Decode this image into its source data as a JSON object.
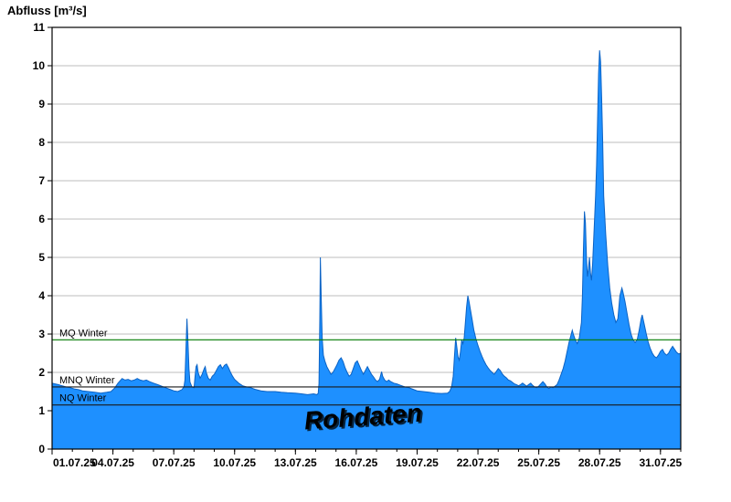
{
  "chart_data": {
    "type": "area",
    "title": "Abfluss [m³/s]",
    "xlabel": "",
    "ylabel": "Abfluss [m³/s]",
    "ylim": [
      0,
      11
    ],
    "xlim": [
      0,
      31
    ],
    "grid": "horizontal",
    "legend_position": "none",
    "watermark": "Rohdaten",
    "y_ticks": [
      0,
      1,
      2,
      3,
      4,
      5,
      6,
      7,
      8,
      9,
      10,
      11
    ],
    "x_ticks": [
      {
        "day": 0,
        "label": "01.07.25"
      },
      {
        "day": 3,
        "label": "04.07.25"
      },
      {
        "day": 6,
        "label": "07.07.25"
      },
      {
        "day": 9,
        "label": "10.07.25"
      },
      {
        "day": 12,
        "label": "13.07.25"
      },
      {
        "day": 15,
        "label": "16.07.25"
      },
      {
        "day": 18,
        "label": "19.07.25"
      },
      {
        "day": 21,
        "label": "22.07.25"
      },
      {
        "day": 24,
        "label": "25.07.25"
      },
      {
        "day": 27,
        "label": "28.07.25"
      },
      {
        "day": 30,
        "label": "31.07.25"
      }
    ],
    "reference_lines": [
      {
        "label": "MQ Winter",
        "value": 2.85,
        "color": "#007A00"
      },
      {
        "label": "MNQ Winter",
        "value": 1.62,
        "color": "#1A1A1A"
      },
      {
        "label": "NQ Winter",
        "value": 1.15,
        "color": "#1A1A1A"
      }
    ],
    "colors": {
      "area_fill": "#1E90FF",
      "area_stroke": "#0B62C4",
      "grid": "#BEBEBE",
      "axis": "#000000",
      "watermark_fill": "#FFFFFF",
      "watermark_shadow": "#666666"
    },
    "series": [
      {
        "name": "Rohdaten",
        "points": [
          [
            0,
            1.72
          ],
          [
            0.15,
            1.7
          ],
          [
            0.3,
            1.68
          ],
          [
            0.5,
            1.65
          ],
          [
            0.7,
            1.62
          ],
          [
            0.9,
            1.6
          ],
          [
            1.1,
            1.57
          ],
          [
            1.3,
            1.55
          ],
          [
            1.5,
            1.52
          ],
          [
            1.8,
            1.5
          ],
          [
            2.1,
            1.48
          ],
          [
            2.4,
            1.46
          ],
          [
            2.7,
            1.48
          ],
          [
            2.9,
            1.5
          ],
          [
            3.1,
            1.6
          ],
          [
            3.25,
            1.72
          ],
          [
            3.45,
            1.84
          ],
          [
            3.6,
            1.8
          ],
          [
            3.75,
            1.82
          ],
          [
            3.9,
            1.78
          ],
          [
            4.05,
            1.8
          ],
          [
            4.2,
            1.84
          ],
          [
            4.35,
            1.8
          ],
          [
            4.5,
            1.78
          ],
          [
            4.65,
            1.8
          ],
          [
            4.8,
            1.76
          ],
          [
            5,
            1.72
          ],
          [
            5.2,
            1.68
          ],
          [
            5.4,
            1.64
          ],
          [
            5.6,
            1.6
          ],
          [
            5.8,
            1.56
          ],
          [
            6,
            1.52
          ],
          [
            6.2,
            1.5
          ],
          [
            6.4,
            1.55
          ],
          [
            6.5,
            1.62
          ],
          [
            6.55,
            1.8
          ],
          [
            6.6,
            2.6
          ],
          [
            6.65,
            3.4
          ],
          [
            6.7,
            2.8
          ],
          [
            6.75,
            2.1
          ],
          [
            6.8,
            1.75
          ],
          [
            6.9,
            1.62
          ],
          [
            7,
            1.6
          ],
          [
            7.05,
            1.9
          ],
          [
            7.1,
            2.15
          ],
          [
            7.15,
            2.2
          ],
          [
            7.2,
            2
          ],
          [
            7.3,
            1.85
          ],
          [
            7.4,
            1.95
          ],
          [
            7.5,
            2.1
          ],
          [
            7.55,
            2.15
          ],
          [
            7.6,
            2
          ],
          [
            7.7,
            1.85
          ],
          [
            7.8,
            1.8
          ],
          [
            7.9,
            1.9
          ],
          [
            8,
            1.95
          ],
          [
            8.1,
            2.05
          ],
          [
            8.2,
            2.15
          ],
          [
            8.3,
            2.2
          ],
          [
            8.4,
            2.1
          ],
          [
            8.5,
            2.18
          ],
          [
            8.6,
            2.22
          ],
          [
            8.7,
            2.12
          ],
          [
            8.8,
            2
          ],
          [
            8.9,
            1.9
          ],
          [
            9,
            1.82
          ],
          [
            9.2,
            1.72
          ],
          [
            9.4,
            1.65
          ],
          [
            9.6,
            1.62
          ],
          [
            9.8,
            1.6
          ],
          [
            10,
            1.56
          ],
          [
            10.3,
            1.52
          ],
          [
            10.6,
            1.5
          ],
          [
            11,
            1.5
          ],
          [
            11.3,
            1.48
          ],
          [
            11.6,
            1.47
          ],
          [
            12,
            1.46
          ],
          [
            12.3,
            1.44
          ],
          [
            12.6,
            1.42
          ],
          [
            12.9,
            1.44
          ],
          [
            13.05,
            1.42
          ],
          [
            13.12,
            1.45
          ],
          [
            13.16,
            1.7
          ],
          [
            13.2,
            3.4
          ],
          [
            13.23,
            5
          ],
          [
            13.27,
            4
          ],
          [
            13.32,
            2.9
          ],
          [
            13.38,
            2.45
          ],
          [
            13.45,
            2.3
          ],
          [
            13.55,
            2.15
          ],
          [
            13.65,
            2.05
          ],
          [
            13.75,
            1.95
          ],
          [
            13.85,
            2
          ],
          [
            13.95,
            2.1
          ],
          [
            14.05,
            2.2
          ],
          [
            14.15,
            2.32
          ],
          [
            14.25,
            2.38
          ],
          [
            14.35,
            2.28
          ],
          [
            14.45,
            2.12
          ],
          [
            14.55,
            2
          ],
          [
            14.65,
            1.9
          ],
          [
            14.75,
            1.95
          ],
          [
            14.85,
            2.1
          ],
          [
            14.95,
            2.25
          ],
          [
            15.05,
            2.3
          ],
          [
            15.15,
            2.18
          ],
          [
            15.25,
            2.05
          ],
          [
            15.35,
            1.95
          ],
          [
            15.45,
            2.05
          ],
          [
            15.55,
            2.15
          ],
          [
            15.65,
            2.05
          ],
          [
            15.75,
            1.95
          ],
          [
            15.85,
            1.88
          ],
          [
            15.95,
            1.8
          ],
          [
            16.05,
            1.76
          ],
          [
            16.15,
            1.82
          ],
          [
            16.25,
            2.02
          ],
          [
            16.3,
            1.9
          ],
          [
            16.4,
            1.8
          ],
          [
            16.5,
            1.76
          ],
          [
            16.6,
            1.8
          ],
          [
            16.7,
            1.76
          ],
          [
            16.85,
            1.72
          ],
          [
            17,
            1.7
          ],
          [
            17.2,
            1.66
          ],
          [
            17.4,
            1.62
          ],
          [
            17.6,
            1.6
          ],
          [
            17.8,
            1.56
          ],
          [
            18,
            1.52
          ],
          [
            18.3,
            1.5
          ],
          [
            18.6,
            1.48
          ],
          [
            18.9,
            1.46
          ],
          [
            19.2,
            1.45
          ],
          [
            19.5,
            1.46
          ],
          [
            19.6,
            1.5
          ],
          [
            19.7,
            1.62
          ],
          [
            19.78,
            1.9
          ],
          [
            19.84,
            2.4
          ],
          [
            19.9,
            2.9
          ],
          [
            19.96,
            2.65
          ],
          [
            20.02,
            2.4
          ],
          [
            20.08,
            2.32
          ],
          [
            20.14,
            2.55
          ],
          [
            20.2,
            2.85
          ],
          [
            20.26,
            2.75
          ],
          [
            20.32,
            2.9
          ],
          [
            20.38,
            3.3
          ],
          [
            20.44,
            3.7
          ],
          [
            20.5,
            4
          ],
          [
            20.56,
            3.85
          ],
          [
            20.64,
            3.6
          ],
          [
            20.72,
            3.35
          ],
          [
            20.8,
            3.1
          ],
          [
            20.9,
            2.88
          ],
          [
            21,
            2.7
          ],
          [
            21.1,
            2.55
          ],
          [
            21.2,
            2.42
          ],
          [
            21.3,
            2.3
          ],
          [
            21.4,
            2.2
          ],
          [
            21.5,
            2.12
          ],
          [
            21.6,
            2.05
          ],
          [
            21.7,
            2
          ],
          [
            21.8,
            1.95
          ],
          [
            21.9,
            2.02
          ],
          [
            22,
            2.1
          ],
          [
            22.1,
            2.05
          ],
          [
            22.2,
            1.96
          ],
          [
            22.3,
            1.9
          ],
          [
            22.4,
            1.86
          ],
          [
            22.5,
            1.8
          ],
          [
            22.6,
            1.78
          ],
          [
            22.7,
            1.74
          ],
          [
            22.8,
            1.7
          ],
          [
            22.9,
            1.68
          ],
          [
            23,
            1.65
          ],
          [
            23.1,
            1.68
          ],
          [
            23.2,
            1.72
          ],
          [
            23.3,
            1.68
          ],
          [
            23.4,
            1.64
          ],
          [
            23.5,
            1.68
          ],
          [
            23.6,
            1.72
          ],
          [
            23.7,
            1.66
          ],
          [
            23.8,
            1.62
          ],
          [
            23.9,
            1.6
          ],
          [
            24,
            1.64
          ],
          [
            24.1,
            1.7
          ],
          [
            24.2,
            1.76
          ],
          [
            24.3,
            1.7
          ],
          [
            24.4,
            1.62
          ],
          [
            24.5,
            1.58
          ],
          [
            24.6,
            1.62
          ],
          [
            24.7,
            1.6
          ],
          [
            24.8,
            1.64
          ],
          [
            24.9,
            1.68
          ],
          [
            25,
            1.8
          ],
          [
            25.1,
            1.95
          ],
          [
            25.2,
            2.1
          ],
          [
            25.3,
            2.3
          ],
          [
            25.4,
            2.55
          ],
          [
            25.5,
            2.8
          ],
          [
            25.6,
            3
          ],
          [
            25.65,
            3.1
          ],
          [
            25.7,
            3
          ],
          [
            25.8,
            2.85
          ],
          [
            25.9,
            2.75
          ],
          [
            26,
            2.9
          ],
          [
            26.05,
            3.1
          ],
          [
            26.1,
            3.3
          ],
          [
            26.15,
            4
          ],
          [
            26.2,
            5.2
          ],
          [
            26.25,
            6.2
          ],
          [
            26.3,
            5.9
          ],
          [
            26.35,
            5
          ],
          [
            26.4,
            4.5
          ],
          [
            26.45,
            4.7
          ],
          [
            26.5,
            5
          ],
          [
            26.55,
            4.6
          ],
          [
            26.6,
            4.4
          ],
          [
            26.65,
            4.8
          ],
          [
            26.7,
            5.4
          ],
          [
            26.75,
            6
          ],
          [
            26.8,
            6.6
          ],
          [
            26.85,
            7.4
          ],
          [
            26.9,
            8.6
          ],
          [
            26.95,
            9.8
          ],
          [
            27,
            10.4
          ],
          [
            27.05,
            10.1
          ],
          [
            27.1,
            9.2
          ],
          [
            27.15,
            8
          ],
          [
            27.2,
            6.6
          ],
          [
            27.3,
            5.6
          ],
          [
            27.4,
            4.8
          ],
          [
            27.5,
            4.2
          ],
          [
            27.6,
            3.8
          ],
          [
            27.7,
            3.5
          ],
          [
            27.8,
            3.3
          ],
          [
            27.9,
            3.4
          ],
          [
            27.95,
            3.7
          ],
          [
            28,
            4
          ],
          [
            28.1,
            4.2
          ],
          [
            28.15,
            4.1
          ],
          [
            28.25,
            3.85
          ],
          [
            28.35,
            3.55
          ],
          [
            28.45,
            3.25
          ],
          [
            28.55,
            3
          ],
          [
            28.65,
            2.85
          ],
          [
            28.75,
            2.78
          ],
          [
            28.85,
            2.85
          ],
          [
            28.95,
            3.1
          ],
          [
            29.05,
            3.4
          ],
          [
            29.1,
            3.5
          ],
          [
            29.2,
            3.25
          ],
          [
            29.3,
            3
          ],
          [
            29.4,
            2.78
          ],
          [
            29.5,
            2.62
          ],
          [
            29.6,
            2.5
          ],
          [
            29.7,
            2.42
          ],
          [
            29.8,
            2.38
          ],
          [
            29.9,
            2.45
          ],
          [
            30,
            2.55
          ],
          [
            30.1,
            2.6
          ],
          [
            30.2,
            2.5
          ],
          [
            30.3,
            2.45
          ],
          [
            30.4,
            2.5
          ],
          [
            30.5,
            2.6
          ],
          [
            30.6,
            2.68
          ],
          [
            30.7,
            2.6
          ],
          [
            30.8,
            2.52
          ],
          [
            30.9,
            2.48
          ],
          [
            31,
            2.5
          ]
        ]
      }
    ]
  }
}
